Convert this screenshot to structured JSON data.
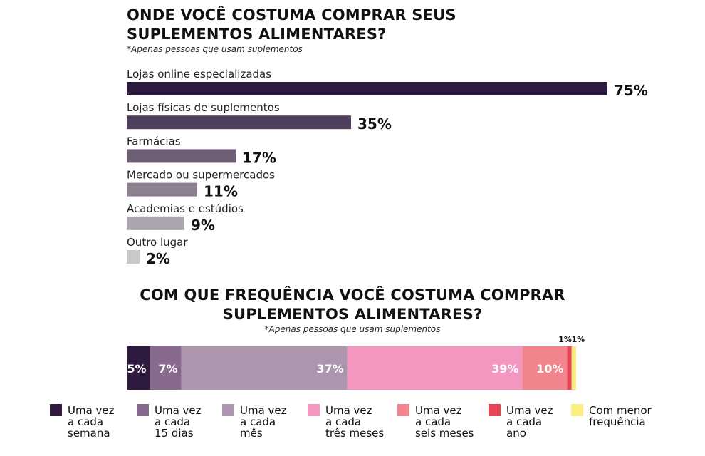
{
  "chart_data": [
    {
      "type": "bar",
      "orientation": "horizontal",
      "title": "ONDE VOCÊ COSTUMA COMPRAR SEUS SUPLEMENTOS ALIMENTARES?",
      "subtitle": "*Apenas pessoas que usam suplementos",
      "categories": [
        "Lojas online especializadas",
        "Lojas físicas de suplementos",
        "Farmácias",
        "Mercado ou supermercados",
        "Academias e estúdios",
        "Outro lugar"
      ],
      "values": [
        75,
        35,
        17,
        11,
        9,
        2
      ],
      "value_labels": [
        "75%",
        "35%",
        "17%",
        "11%",
        "9%",
        "2%"
      ],
      "colors": [
        "#2e1a3f",
        "#503e5d",
        "#6e5f77",
        "#8b7f90",
        "#aca5b0",
        "#cbc8cc"
      ],
      "xlim": [
        0,
        75
      ],
      "grid": false
    },
    {
      "type": "bar",
      "stacked": true,
      "orientation": "horizontal",
      "title": "COM QUE FREQUÊNCIA VOCÊ COSTUMA COMPRAR SUPLEMENTOS ALIMENTARES?",
      "subtitle": "*Apenas pessoas que usam suplementos",
      "series": [
        {
          "name": "Uma vez a cada semana",
          "value": 5,
          "label": "5%",
          "color": "#2e1a3f",
          "legend_lines": [
            "Uma vez",
            "a cada",
            "semana"
          ]
        },
        {
          "name": "Uma vez a cada 15 dias",
          "value": 7,
          "label": "7%",
          "color": "#876a8e",
          "legend_lines": [
            "Uma vez",
            "a cada",
            "15 dias"
          ]
        },
        {
          "name": "Uma vez a cada mês",
          "value": 37,
          "label": "37%",
          "color": "#ab96ad",
          "legend_lines": [
            "Uma vez",
            "a cada",
            "mês"
          ]
        },
        {
          "name": "Uma vez a cada três meses",
          "value": 39,
          "label": "39%",
          "color": "#f396c0",
          "legend_lines": [
            "Uma vez",
            "a cada",
            "três meses"
          ]
        },
        {
          "name": "Uma vez a cada seis meses",
          "value": 10,
          "label": "10%",
          "color": "#f2848e",
          "legend_lines": [
            "Uma vez",
            "a cada",
            "seis meses"
          ]
        },
        {
          "name": "Uma vez a cada ano",
          "value": 1,
          "label": "1%",
          "color": "#e84557",
          "legend_lines": [
            "Uma vez",
            "a cada",
            "ano"
          ]
        },
        {
          "name": "Com menor frequência",
          "value": 1,
          "label": "1%",
          "color": "#fbee83",
          "legend_lines": [
            "Com menor",
            "frequência"
          ]
        }
      ],
      "legend_position": "bottom"
    }
  ]
}
